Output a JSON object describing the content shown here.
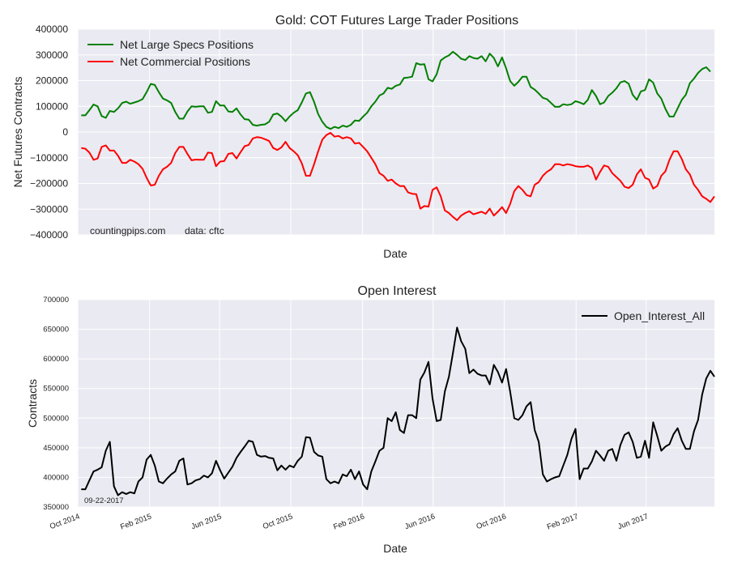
{
  "chart_data": [
    {
      "type": "line",
      "title": "Gold: COT Futures Large Trader Positions",
      "xlabel": "Date",
      "ylabel": "Net Futures Contracts",
      "ylim": [
        -400000,
        400000
      ],
      "yticks": [
        "400000",
        "300000",
        "200000",
        "100000",
        "0",
        "−100000",
        "−200000",
        "−300000",
        "−400000"
      ],
      "grid": true,
      "legend_position": "top-left",
      "annotations": [
        "countingpips.com",
        "data: cftc"
      ],
      "x_start": "2014-10-07",
      "x_step_days": 7,
      "series": [
        {
          "name": "Net Large Specs Positions",
          "color": "#008000",
          "values": [
            65000,
            65000,
            85000,
            107000,
            100000,
            62000,
            55000,
            82000,
            78000,
            92000,
            113000,
            118000,
            110000,
            115000,
            120000,
            128000,
            155000,
            187000,
            183000,
            155000,
            130000,
            123000,
            113000,
            78000,
            52000,
            52000,
            80000,
            100000,
            98000,
            100000,
            100000,
            75000,
            78000,
            120000,
            103000,
            103000,
            80000,
            78000,
            92000,
            68000,
            50000,
            48000,
            28000,
            25000,
            28000,
            30000,
            40000,
            68000,
            72000,
            60000,
            42000,
            60000,
            75000,
            85000,
            115000,
            150000,
            155000,
            117000,
            70000,
            40000,
            20000,
            12000,
            20000,
            15000,
            25000,
            20000,
            28000,
            45000,
            43000,
            60000,
            75000,
            100000,
            118000,
            142000,
            150000,
            172000,
            168000,
            180000,
            185000,
            210000,
            212000,
            215000,
            268000,
            262000,
            264000,
            205000,
            197000,
            225000,
            278000,
            290000,
            298000,
            312000,
            300000,
            285000,
            280000,
            295000,
            288000,
            285000,
            295000,
            275000,
            305000,
            288000,
            255000,
            290000,
            248000,
            198000,
            180000,
            195000,
            215000,
            215000,
            175000,
            165000,
            150000,
            133000,
            128000,
            113000,
            98000,
            98000,
            108000,
            105000,
            108000,
            120000,
            115000,
            108000,
            125000,
            163000,
            140000,
            108000,
            115000,
            140000,
            153000,
            170000,
            193000,
            198000,
            188000,
            145000,
            125000,
            158000,
            163000,
            205000,
            192000,
            150000,
            130000,
            90000,
            60000,
            60000,
            92000,
            125000,
            145000,
            190000,
            208000,
            230000,
            245000,
            252000,
            235000
          ]
        },
        {
          "name": "Net Commercial Positions",
          "color": "#ff0000",
          "values": [
            -62000,
            -65000,
            -80000,
            -108000,
            -103000,
            -58000,
            -52000,
            -72000,
            -72000,
            -92000,
            -120000,
            -120000,
            -108000,
            -115000,
            -125000,
            -143000,
            -178000,
            -208000,
            -205000,
            -170000,
            -145000,
            -135000,
            -120000,
            -82000,
            -58000,
            -58000,
            -85000,
            -110000,
            -107000,
            -108000,
            -108000,
            -80000,
            -82000,
            -133000,
            -115000,
            -113000,
            -85000,
            -82000,
            -103000,
            -78000,
            -55000,
            -50000,
            -25000,
            -20000,
            -22000,
            -28000,
            -35000,
            -62000,
            -70000,
            -60000,
            -38000,
            -62000,
            -75000,
            -90000,
            -122000,
            -170000,
            -170000,
            -125000,
            -75000,
            -30000,
            -12000,
            -3000,
            -18000,
            -15000,
            -25000,
            -20000,
            -25000,
            -45000,
            -42000,
            -58000,
            -75000,
            -100000,
            -125000,
            -160000,
            -170000,
            -190000,
            -185000,
            -200000,
            -210000,
            -210000,
            -235000,
            -240000,
            -242000,
            -298000,
            -288000,
            -290000,
            -225000,
            -215000,
            -250000,
            -305000,
            -315000,
            -330000,
            -343000,
            -325000,
            -315000,
            -308000,
            -320000,
            -315000,
            -310000,
            -318000,
            -298000,
            -325000,
            -310000,
            -292000,
            -315000,
            -280000,
            -230000,
            -210000,
            -225000,
            -245000,
            -250000,
            -205000,
            -195000,
            -170000,
            -155000,
            -145000,
            -125000,
            -125000,
            -130000,
            -125000,
            -128000,
            -133000,
            -135000,
            -135000,
            -130000,
            -140000,
            -185000,
            -155000,
            -130000,
            -135000,
            -160000,
            -175000,
            -190000,
            -213000,
            -218000,
            -205000,
            -165000,
            -145000,
            -178000,
            -185000,
            -220000,
            -210000,
            -170000,
            -153000,
            -108000,
            -75000,
            -75000,
            -105000,
            -145000,
            -165000,
            -205000,
            -225000,
            -250000,
            -260000,
            -272000,
            -250000
          ]
        }
      ]
    },
    {
      "type": "line",
      "title": "Open Interest",
      "xlabel": "Date",
      "ylabel": "Contracts",
      "ylim": [
        350000,
        700000
      ],
      "yticks": [
        "700000",
        "650000",
        "600000",
        "550000",
        "500000",
        "450000",
        "400000",
        "350000"
      ],
      "xticks": [
        "Oct 2014",
        "Feb 2015",
        "Jun 2015",
        "Oct 2015",
        "Feb 2016",
        "Jun 2016",
        "Oct 2016",
        "Feb 2017",
        "Jun 2017"
      ],
      "grid": true,
      "legend_position": "top-right",
      "annotations": [
        "09-22-2017"
      ],
      "x_start": "2014-10-07",
      "x_step_days": 7,
      "series": [
        {
          "name": "Open_Interest_All",
          "color": "#000000",
          "values": [
            380000,
            380000,
            395000,
            410000,
            413000,
            417000,
            445000,
            460000,
            385000,
            370000,
            375000,
            372000,
            375000,
            373000,
            393000,
            400000,
            430000,
            438000,
            420000,
            393000,
            390000,
            398000,
            405000,
            410000,
            428000,
            432000,
            388000,
            390000,
            395000,
            397000,
            403000,
            400000,
            407000,
            428000,
            412000,
            398000,
            408000,
            418000,
            433000,
            443000,
            452000,
            462000,
            460000,
            438000,
            435000,
            436000,
            433000,
            432000,
            412000,
            420000,
            413000,
            420000,
            417000,
            428000,
            435000,
            468000,
            467000,
            443000,
            437000,
            435000,
            397000,
            390000,
            393000,
            390000,
            405000,
            402000,
            413000,
            397000,
            410000,
            388000,
            380000,
            410000,
            427000,
            445000,
            450000,
            500000,
            495000,
            510000,
            480000,
            475000,
            505000,
            505000,
            500000,
            565000,
            577000,
            595000,
            533000,
            495000,
            497000,
            545000,
            570000,
            610000,
            653000,
            630000,
            617000,
            576000,
            582000,
            575000,
            572000,
            572000,
            557000,
            590000,
            578000,
            560000,
            583000,
            545000,
            500000,
            497000,
            505000,
            520000,
            527000,
            480000,
            460000,
            405000,
            393000,
            397000,
            400000,
            402000,
            420000,
            438000,
            465000,
            482000,
            397000,
            415000,
            415000,
            427000,
            445000,
            437000,
            428000,
            445000,
            448000,
            428000,
            455000,
            472000,
            476000,
            460000,
            433000,
            435000,
            462000,
            433000,
            493000,
            470000,
            445000,
            452000,
            456000,
            473000,
            483000,
            462000,
            448000,
            448000,
            478000,
            497000,
            540000,
            567000,
            580000,
            570000
          ]
        }
      ]
    }
  ]
}
